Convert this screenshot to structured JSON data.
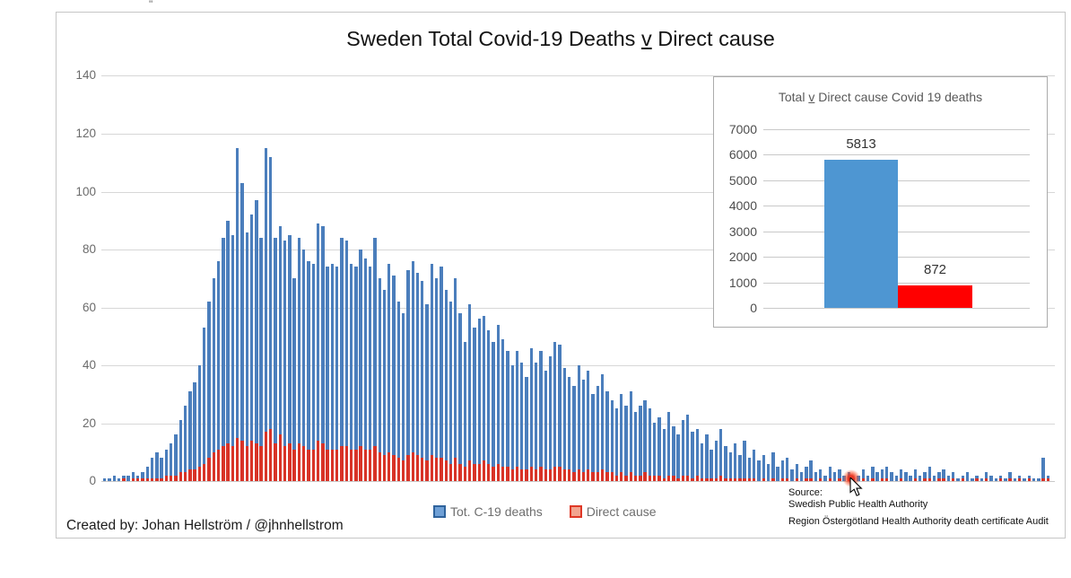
{
  "page": {
    "title_part1": "Sweden Total Covid-19 Deaths",
    "title_v": "v",
    "title_part2": "Direct cause",
    "inset_title_part1": "Total",
    "inset_title_v": "v",
    "inset_title_part2": "Direct cause Covid 19 deaths",
    "created_by": "Created by: Johan Hellström / @jhnhellstrom",
    "source_label": "Source:",
    "source_line1": "Swedish Public Health Authority",
    "source_line2": "Region Östergötland Health Authority death certificate Audit",
    "top_artifact": "''"
  },
  "legend": {
    "total_label": "Tot. C-19 deaths",
    "direct_label": "Direct cause"
  },
  "colors": {
    "total_bar": "#4b7ebc",
    "direct_bar": "#d83327",
    "inset_total_bar": "#4e96d2",
    "inset_direct_bar": "#ff0000",
    "gridline": "#d7d7d7",
    "axis_text": "#6b6b6b",
    "highlight_dot": "#e8301c"
  },
  "chart_data": [
    {
      "type": "bar",
      "title": "Sweden Total Covid-19 Deaths v Direct cause",
      "xlabel": "",
      "ylabel": "",
      "ylim": [
        0,
        140
      ],
      "yticks": [
        0,
        20,
        40,
        60,
        80,
        100,
        120,
        140
      ],
      "grid": true,
      "xticklabels_visible": false,
      "n_bars": 200,
      "legend_position": "bottom",
      "series": [
        {
          "name": "Tot. C-19 deaths",
          "color": "#4b7ebc",
          "values": [
            1,
            1,
            2,
            1,
            2,
            2,
            3,
            2,
            3,
            5,
            8,
            10,
            8,
            11,
            13,
            16,
            21,
            26,
            31,
            34,
            40,
            53,
            62,
            70,
            76,
            84,
            90,
            85,
            115,
            103,
            86,
            92,
            97,
            84,
            115,
            112,
            84,
            88,
            83,
            85,
            70,
            84,
            80,
            76,
            75,
            89,
            88,
            74,
            75,
            74,
            84,
            83,
            75,
            74,
            80,
            77,
            74,
            84,
            70,
            66,
            75,
            71,
            62,
            58,
            73,
            76,
            72,
            69,
            61,
            75,
            70,
            74,
            66,
            62,
            70,
            58,
            48,
            61,
            53,
            56,
            57,
            52,
            48,
            54,
            49,
            45,
            40,
            45,
            41,
            36,
            46,
            41,
            45,
            38,
            43,
            48,
            47,
            39,
            36,
            33,
            40,
            35,
            38,
            30,
            33,
            37,
            31,
            28,
            25,
            30,
            26,
            31,
            24,
            26,
            28,
            25,
            20,
            22,
            18,
            24,
            19,
            16,
            21,
            23,
            17,
            18,
            13,
            16,
            11,
            14,
            18,
            12,
            10,
            13,
            9,
            14,
            8,
            11,
            7,
            9,
            6,
            10,
            5,
            7,
            8,
            4,
            6,
            3,
            5,
            7,
            3,
            4,
            2,
            5,
            3,
            4,
            2,
            3,
            1,
            2,
            4,
            2,
            5,
            3,
            4,
            5,
            3,
            2,
            4,
            3,
            2,
            4,
            2,
            3,
            5,
            2,
            3,
            4,
            2,
            3,
            1,
            2,
            3,
            1,
            2,
            1,
            3,
            2,
            1,
            2,
            1,
            3,
            1,
            2,
            1,
            2,
            1,
            1,
            8,
            2
          ]
        },
        {
          "name": "Direct cause",
          "color": "#d83327",
          "values": [
            0,
            0,
            0,
            0,
            1,
            0,
            1,
            1,
            1,
            1,
            1,
            1,
            1,
            2,
            2,
            2,
            3,
            3,
            4,
            4,
            5,
            6,
            8,
            10,
            11,
            12,
            13,
            12,
            15,
            14,
            12,
            14,
            13,
            12,
            17,
            18,
            13,
            16,
            12,
            13,
            11,
            13,
            12,
            11,
            11,
            14,
            13,
            11,
            11,
            11,
            12,
            12,
            11,
            11,
            12,
            11,
            11,
            12,
            10,
            9,
            10,
            9,
            8,
            7,
            9,
            10,
            9,
            8,
            7,
            9,
            8,
            8,
            7,
            6,
            8,
            6,
            5,
            7,
            6,
            6,
            7,
            6,
            5,
            6,
            5,
            5,
            4,
            5,
            4,
            4,
            5,
            4,
            5,
            4,
            4,
            5,
            5,
            4,
            4,
            3,
            4,
            3,
            4,
            3,
            3,
            4,
            3,
            3,
            2,
            3,
            2,
            3,
            2,
            2,
            3,
            2,
            2,
            2,
            1,
            2,
            2,
            1,
            2,
            2,
            1,
            2,
            1,
            1,
            1,
            1,
            2,
            1,
            1,
            1,
            1,
            1,
            1,
            1,
            0,
            1,
            0,
            1,
            0,
            1,
            1,
            0,
            1,
            0,
            1,
            1,
            0,
            1,
            0,
            1,
            0,
            1,
            0,
            1,
            0,
            0,
            1,
            0,
            1,
            0,
            1,
            1,
            0,
            0,
            1,
            0,
            0,
            1,
            0,
            1,
            1,
            0,
            1,
            1,
            0,
            1,
            0,
            1,
            0,
            0,
            1,
            0,
            1,
            0,
            0,
            1,
            0,
            1,
            0,
            1,
            0,
            1,
            0,
            0,
            1,
            1
          ]
        }
      ]
    },
    {
      "type": "bar",
      "title": "Total v Direct cause Covid 19 deaths",
      "categories": [
        "Total",
        "Direct cause"
      ],
      "values": [
        5813,
        872
      ],
      "data_labels": [
        "5813",
        "872"
      ],
      "bar_colors": [
        "#4e96d2",
        "#ff0000"
      ],
      "ylim": [
        0,
        7000
      ],
      "yticks": [
        0,
        1000,
        2000,
        3000,
        4000,
        5000,
        6000,
        7000
      ],
      "grid": true,
      "xticklabels_visible": false,
      "legend_position": "none"
    }
  ]
}
